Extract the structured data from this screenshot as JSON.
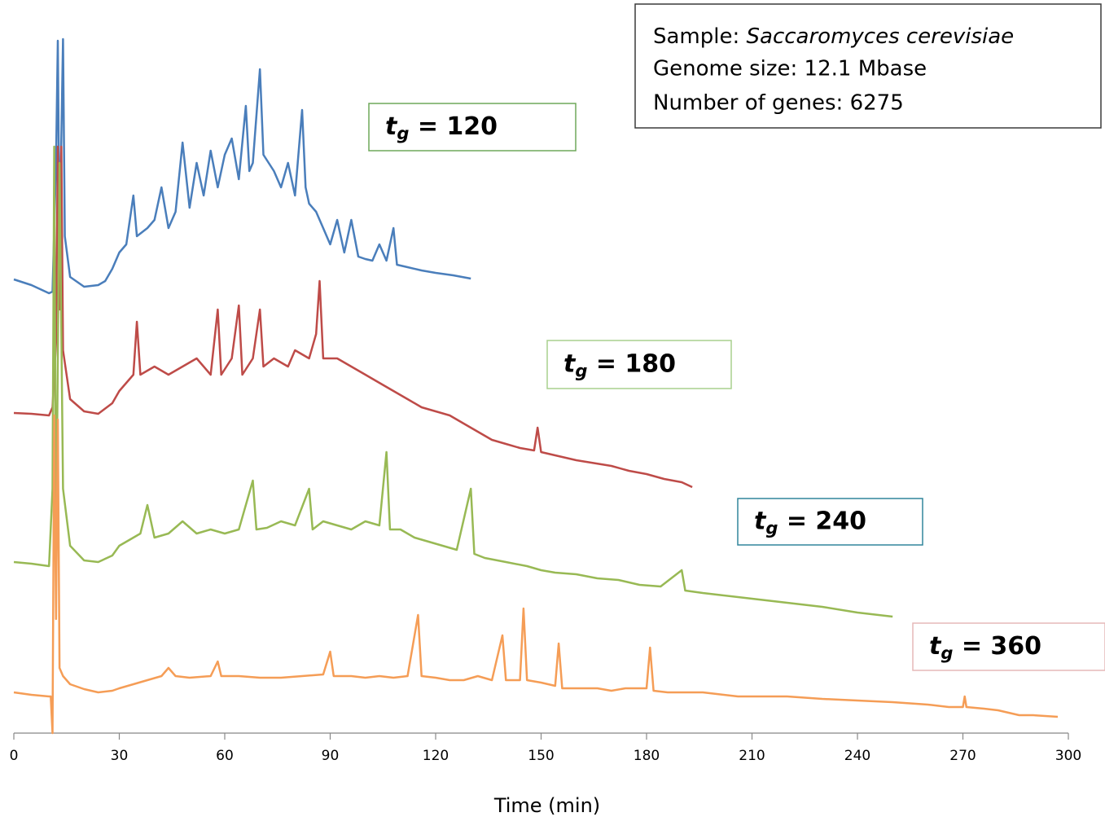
{
  "chart_data": {
    "type": "line",
    "annotation": [
      "Sample: ",
      "Saccaromyces cerevisiae",
      "Genome size: 12.1 Mbase",
      "Number of genes: 6275"
    ],
    "x_label": "Time (min)",
    "xlim": [
      0,
      300
    ],
    "xticks": [
      0,
      30,
      60,
      90,
      120,
      150,
      180,
      210,
      240,
      270,
      300
    ],
    "ylim": [
      0,
      900
    ],
    "series": [
      {
        "name": [
          "t",
          "g",
          " = 120"
        ],
        "color": "#4a7ebb",
        "x": [
          0,
          5,
          10,
          11,
          12,
          12.5,
          13,
          14,
          14.5,
          16,
          20,
          24,
          26,
          28,
          30,
          32,
          34,
          35,
          38,
          40,
          42,
          44,
          46,
          48,
          50,
          52,
          54,
          56,
          58,
          60,
          62,
          64,
          66,
          67,
          68,
          70,
          71,
          74,
          76,
          78,
          80,
          82,
          83,
          84,
          86,
          88,
          90,
          92,
          94,
          96,
          98,
          100,
          102,
          104,
          106,
          108,
          109,
          112,
          116,
          120,
          125,
          130
        ],
        "values": [
          557,
          550,
          540,
          542,
          700,
          850,
          600,
          852,
          610,
          560,
          548,
          550,
          555,
          570,
          590,
          600,
          660,
          610,
          620,
          630,
          670,
          620,
          640,
          725,
          645,
          700,
          660,
          715,
          670,
          710,
          730,
          680,
          770,
          690,
          700,
          815,
          710,
          690,
          670,
          700,
          660,
          765,
          670,
          650,
          640,
          620,
          600,
          630,
          590,
          630,
          585,
          582,
          580,
          600,
          580,
          620,
          575,
          572,
          568,
          565,
          562,
          558
        ]
      },
      {
        "name": [
          "t",
          "g",
          " = 180"
        ],
        "color": "#be4b48",
        "x": [
          0,
          5,
          10,
          11,
          12,
          12.5,
          13,
          13.5,
          14,
          16,
          20,
          24,
          28,
          30,
          34,
          35,
          36,
          40,
          44,
          48,
          52,
          56,
          58,
          59,
          62,
          64,
          65,
          68,
          70,
          71,
          74,
          78,
          80,
          84,
          86,
          87,
          88,
          92,
          96,
          100,
          104,
          108,
          112,
          116,
          120,
          124,
          128,
          132,
          136,
          140,
          144,
          148,
          149,
          150,
          155,
          160,
          170,
          175,
          180,
          185,
          190,
          193
        ],
        "values": [
          393,
          392,
          390,
          400,
          480,
          720,
          520,
          720,
          470,
          410,
          395,
          392,
          405,
          420,
          440,
          505,
          440,
          450,
          440,
          450,
          460,
          440,
          520,
          440,
          460,
          525,
          440,
          460,
          520,
          450,
          460,
          450,
          470,
          460,
          490,
          555,
          460,
          460,
          450,
          440,
          430,
          420,
          410,
          400,
          395,
          390,
          380,
          370,
          360,
          355,
          350,
          347,
          375,
          345,
          340,
          335,
          328,
          322,
          318,
          312,
          308,
          302
        ]
      },
      {
        "name": [
          "t",
          "g",
          " = 240"
        ],
        "color": "#98b954",
        "x": [
          0,
          5,
          10,
          11,
          11.5,
          12,
          13,
          14,
          16,
          20,
          24,
          28,
          30,
          34,
          36,
          38,
          40,
          44,
          48,
          52,
          56,
          60,
          64,
          68,
          69,
          72,
          76,
          80,
          84,
          85,
          88,
          92,
          96,
          100,
          104,
          106,
          107,
          110,
          114,
          118,
          122,
          126,
          130,
          131,
          134,
          140,
          146,
          150,
          154,
          160,
          166,
          172,
          178,
          184,
          190,
          191,
          196,
          200,
          210,
          220,
          230,
          240,
          250
        ],
        "values": [
          210,
          208,
          205,
          300,
          720,
          210,
          700,
          300,
          230,
          212,
          210,
          218,
          230,
          240,
          245,
          280,
          240,
          245,
          260,
          245,
          250,
          245,
          250,
          310,
          250,
          252,
          260,
          255,
          300,
          250,
          260,
          255,
          250,
          260,
          255,
          345,
          250,
          250,
          240,
          235,
          230,
          225,
          300,
          220,
          215,
          210,
          205,
          200,
          197,
          195,
          190,
          188,
          182,
          180,
          200,
          175,
          172,
          170,
          165,
          160,
          155,
          148,
          143
        ]
      },
      {
        "name": [
          "t",
          "g",
          " = 360"
        ],
        "color": "#f59d56",
        "x": [
          0,
          5,
          10,
          10.5,
          11,
          11.5,
          12,
          12.5,
          13,
          14,
          16,
          20,
          24,
          28,
          30,
          34,
          38,
          42,
          44,
          46,
          50,
          56,
          58,
          59,
          64,
          70,
          76,
          82,
          88,
          90,
          91,
          96,
          100,
          104,
          108,
          112,
          115,
          116,
          120,
          124,
          128,
          132,
          136,
          139,
          140,
          144,
          145,
          146,
          150,
          154,
          155,
          156,
          160,
          166,
          170,
          174,
          180,
          181,
          182,
          186,
          190,
          196,
          200,
          206,
          210,
          220,
          230,
          240,
          250,
          260,
          266,
          270,
          270.5,
          271,
          276,
          280,
          286,
          290,
          297
        ],
        "values": [
          50,
          47,
          45,
          45,
          0,
          390,
          140,
          385,
          80,
          70,
          60,
          54,
          50,
          52,
          55,
          60,
          65,
          70,
          80,
          70,
          68,
          70,
          88,
          70,
          70,
          68,
          68,
          70,
          72,
          100,
          70,
          70,
          68,
          70,
          68,
          70,
          145,
          70,
          68,
          65,
          65,
          70,
          65,
          120,
          65,
          65,
          153,
          65,
          62,
          58,
          110,
          55,
          55,
          55,
          52,
          55,
          55,
          105,
          52,
          50,
          50,
          50,
          48,
          45,
          45,
          45,
          42,
          40,
          38,
          35,
          32,
          32,
          45,
          32,
          30,
          28,
          22,
          22,
          20
        ]
      }
    ]
  }
}
